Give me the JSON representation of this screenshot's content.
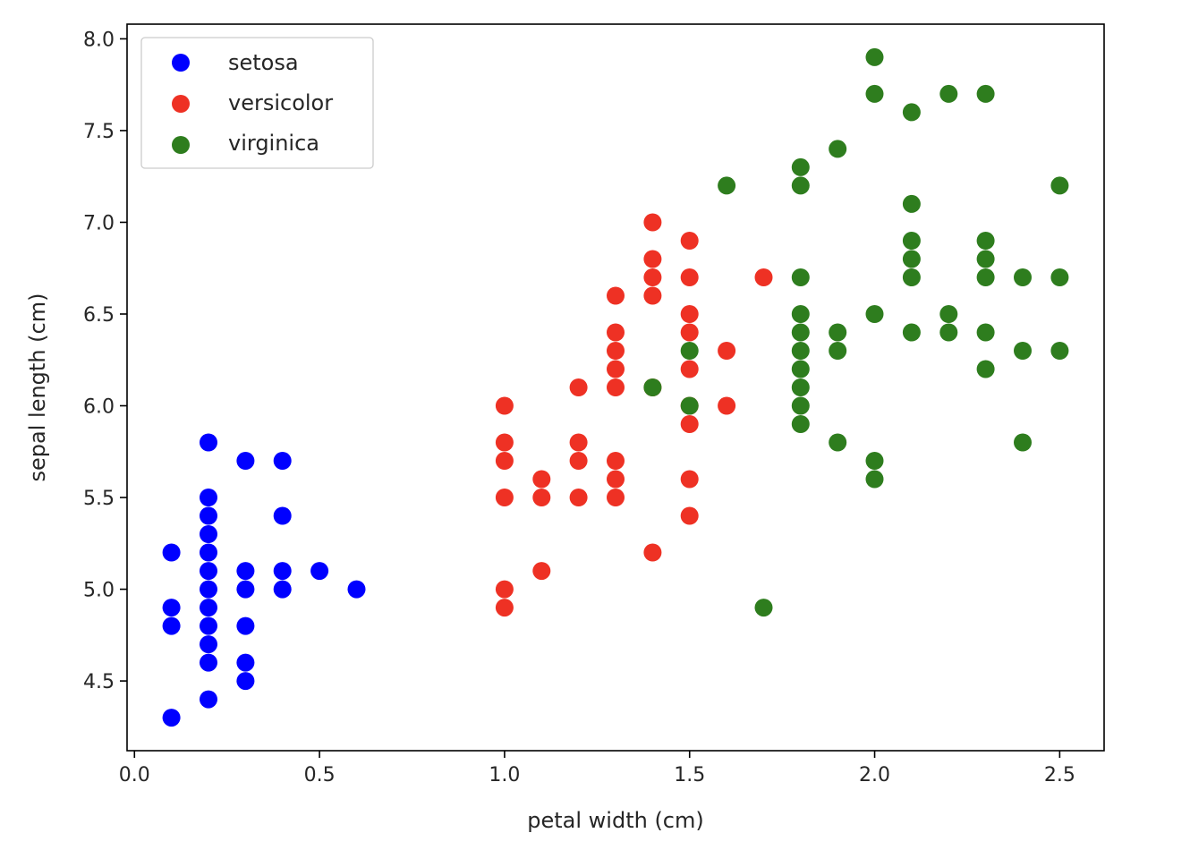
{
  "chart_data": {
    "type": "scatter",
    "title": "",
    "xlabel": "petal width (cm)",
    "ylabel": "sepal length (cm)",
    "xlim": [
      -0.02,
      2.62
    ],
    "ylim": [
      4.12,
      8.08
    ],
    "xticks": [
      0.0,
      0.5,
      1.0,
      1.5,
      2.0,
      2.5
    ],
    "xtick_labels": [
      "0.0",
      "0.5",
      "1.0",
      "1.5",
      "2.0",
      "2.5"
    ],
    "yticks": [
      4.5,
      5.0,
      5.5,
      6.0,
      6.5,
      7.0,
      7.5,
      8.0
    ],
    "ytick_labels": [
      "4.5",
      "5.0",
      "5.5",
      "6.0",
      "6.5",
      "7.0",
      "7.5",
      "8.0"
    ],
    "grid": false,
    "legend_position": "top-left",
    "series": [
      {
        "name": "setosa",
        "color": "#0000ff",
        "points": [
          [
            0.1,
            5.2
          ],
          [
            0.1,
            4.9
          ],
          [
            0.1,
            4.8
          ],
          [
            0.1,
            4.3
          ],
          [
            0.2,
            5.8
          ],
          [
            0.2,
            5.5
          ],
          [
            0.2,
            5.4
          ],
          [
            0.2,
            5.3
          ],
          [
            0.2,
            5.2
          ],
          [
            0.2,
            5.1
          ],
          [
            0.2,
            5.0
          ],
          [
            0.2,
            4.9
          ],
          [
            0.2,
            4.8
          ],
          [
            0.2,
            4.7
          ],
          [
            0.2,
            4.6
          ],
          [
            0.2,
            4.4
          ],
          [
            0.3,
            5.7
          ],
          [
            0.3,
            5.1
          ],
          [
            0.3,
            5.0
          ],
          [
            0.3,
            4.8
          ],
          [
            0.3,
            4.6
          ],
          [
            0.3,
            4.5
          ],
          [
            0.4,
            5.7
          ],
          [
            0.4,
            5.4
          ],
          [
            0.4,
            5.1
          ],
          [
            0.4,
            5.0
          ],
          [
            0.5,
            5.1
          ],
          [
            0.6,
            5.0
          ]
        ]
      },
      {
        "name": "versicolor",
        "color": "#ee3124",
        "points": [
          [
            1.0,
            6.0
          ],
          [
            1.0,
            5.8
          ],
          [
            1.0,
            5.7
          ],
          [
            1.0,
            5.5
          ],
          [
            1.0,
            5.0
          ],
          [
            1.0,
            4.9
          ],
          [
            1.1,
            5.6
          ],
          [
            1.1,
            5.5
          ],
          [
            1.1,
            5.1
          ],
          [
            1.2,
            6.1
          ],
          [
            1.2,
            5.8
          ],
          [
            1.2,
            5.7
          ],
          [
            1.2,
            5.5
          ],
          [
            1.3,
            6.6
          ],
          [
            1.3,
            6.4
          ],
          [
            1.3,
            6.3
          ],
          [
            1.3,
            6.2
          ],
          [
            1.3,
            6.1
          ],
          [
            1.3,
            5.7
          ],
          [
            1.3,
            5.6
          ],
          [
            1.3,
            5.5
          ],
          [
            1.4,
            7.0
          ],
          [
            1.4,
            6.8
          ],
          [
            1.4,
            6.7
          ],
          [
            1.4,
            6.6
          ],
          [
            1.4,
            6.1
          ],
          [
            1.4,
            5.2
          ],
          [
            1.5,
            6.9
          ],
          [
            1.5,
            6.7
          ],
          [
            1.5,
            6.5
          ],
          [
            1.5,
            6.4
          ],
          [
            1.5,
            6.2
          ],
          [
            1.5,
            6.0
          ],
          [
            1.5,
            5.9
          ],
          [
            1.5,
            5.6
          ],
          [
            1.5,
            5.4
          ],
          [
            1.6,
            6.3
          ],
          [
            1.6,
            6.0
          ],
          [
            1.7,
            6.7
          ]
        ]
      },
      {
        "name": "virginica",
        "color": "#2e7d1e",
        "points": [
          [
            1.4,
            6.1
          ],
          [
            1.5,
            6.3
          ],
          [
            1.5,
            6.0
          ],
          [
            1.6,
            7.2
          ],
          [
            1.7,
            4.9
          ],
          [
            1.8,
            7.3
          ],
          [
            1.8,
            7.2
          ],
          [
            1.8,
            6.7
          ],
          [
            1.8,
            6.5
          ],
          [
            1.8,
            6.4
          ],
          [
            1.8,
            6.3
          ],
          [
            1.8,
            6.2
          ],
          [
            1.8,
            6.1
          ],
          [
            1.8,
            6.0
          ],
          [
            1.8,
            5.9
          ],
          [
            1.9,
            7.4
          ],
          [
            1.9,
            6.4
          ],
          [
            1.9,
            6.3
          ],
          [
            1.9,
            5.8
          ],
          [
            2.0,
            7.9
          ],
          [
            2.0,
            7.7
          ],
          [
            2.0,
            6.5
          ],
          [
            2.0,
            5.7
          ],
          [
            2.0,
            5.6
          ],
          [
            2.1,
            7.6
          ],
          [
            2.1,
            7.1
          ],
          [
            2.1,
            6.9
          ],
          [
            2.1,
            6.8
          ],
          [
            2.1,
            6.7
          ],
          [
            2.1,
            6.4
          ],
          [
            2.2,
            7.7
          ],
          [
            2.2,
            6.5
          ],
          [
            2.2,
            6.4
          ],
          [
            2.3,
            7.7
          ],
          [
            2.3,
            6.9
          ],
          [
            2.3,
            6.8
          ],
          [
            2.3,
            6.7
          ],
          [
            2.3,
            6.4
          ],
          [
            2.3,
            6.2
          ],
          [
            2.4,
            6.7
          ],
          [
            2.4,
            6.3
          ],
          [
            2.4,
            5.8
          ],
          [
            2.5,
            7.2
          ],
          [
            2.5,
            6.7
          ],
          [
            2.5,
            6.3
          ]
        ]
      }
    ]
  }
}
